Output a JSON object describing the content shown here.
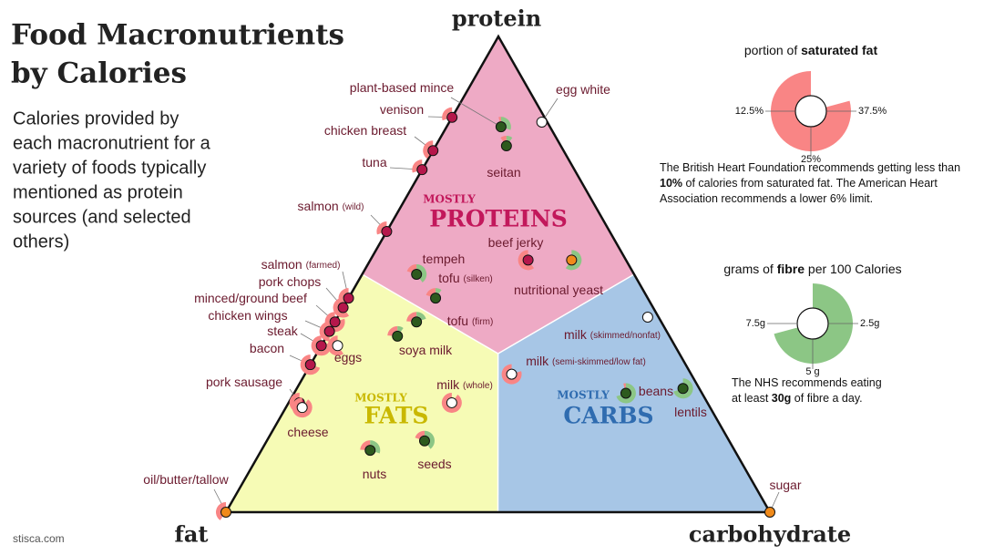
{
  "chart_data": {
    "type": "ternary",
    "title": [
      "Food Macronutrients",
      "by Calories"
    ],
    "subtitle": [
      "Calories provided by",
      "each macronutrient for a",
      "variety of foods typically",
      "mentioned as protein",
      "sources (and selected",
      "others)"
    ],
    "axes": {
      "protein": "protein",
      "fat": "fat",
      "carbohydrate": "carbohydrate"
    },
    "regions": {
      "protein": {
        "small": "MOSTLY",
        "big": "PROTEINS",
        "color": "#eeaac5",
        "text_color": "#c2185b"
      },
      "fat": {
        "small": "MOSTLY",
        "big": "FATS",
        "color": "#f6fbb5",
        "text_color": "#c9b800"
      },
      "carbohydrate": {
        "small": "MOSTLY",
        "big": "CARBS",
        "color": "#a7c6e6",
        "text_color": "#2f6cb0"
      }
    },
    "foods": [
      {
        "name": "egg white",
        "protein": 82,
        "fat": 1,
        "carbohydrate": 17,
        "saturated_fat": 0,
        "fibre": 0,
        "color": "#ffffff"
      },
      {
        "name": "plant-based mince",
        "protein": 81,
        "fat": 9,
        "carbohydrate": 10,
        "saturated_fat": 2,
        "fibre": 3,
        "color": "#2d5a1e"
      },
      {
        "name": "venison",
        "protein": 83,
        "fat": 17,
        "carbohydrate": 0,
        "saturated_fat": 15,
        "fibre": 0,
        "color": "#b5174b"
      },
      {
        "name": "chicken breast",
        "protein": 76,
        "fat": 24,
        "carbohydrate": 0,
        "saturated_fat": 20,
        "fibre": 0,
        "color": "#b5174b"
      },
      {
        "name": "tuna",
        "protein": 72,
        "fat": 28,
        "carbohydrate": 0,
        "saturated_fat": 15,
        "fibre": 0,
        "color": "#b5174b"
      },
      {
        "name": "salmon",
        "qualifier": "(wild)",
        "protein": 59,
        "fat": 41,
        "carbohydrate": 0,
        "saturated_fat": 15,
        "fibre": 0,
        "color": "#b5174b"
      },
      {
        "name": "seitan",
        "protein": 77,
        "fat": 10,
        "carbohydrate": 13,
        "saturated_fat": 5,
        "fibre": 1,
        "color": "#2d5a1e"
      },
      {
        "name": "beef jerky",
        "protein": 53,
        "fat": 18,
        "carbohydrate": 29,
        "saturated_fat": 30,
        "fibre": 0,
        "color": "#b5174b"
      },
      {
        "name": "nutritional yeast",
        "protein": 53,
        "fat": 10,
        "carbohydrate": 37,
        "saturated_fat": 0,
        "fibre": 6,
        "color": "#f08a1a"
      },
      {
        "name": "tempeh",
        "protein": 50,
        "fat": 40,
        "carbohydrate": 10,
        "saturated_fat": 10,
        "fibre": 4,
        "color": "#2d5a1e"
      },
      {
        "name": "tofu",
        "qualifier": "(silken)",
        "protein": 45,
        "fat": 39,
        "carbohydrate": 16,
        "saturated_fat": 10,
        "fibre": 1,
        "color": "#2d5a1e"
      },
      {
        "name": "salmon",
        "qualifier": "(farmed)",
        "protein": 45,
        "fat": 55,
        "carbohydrate": 0,
        "saturated_fat": 20,
        "fibre": 0,
        "color": "#b5174b"
      },
      {
        "name": "pork chops",
        "protein": 43,
        "fat": 57,
        "carbohydrate": 0,
        "saturated_fat": 30,
        "fibre": 0,
        "color": "#b5174b"
      },
      {
        "name": "minced/ground beef",
        "protein": 40,
        "fat": 60,
        "carbohydrate": 0,
        "saturated_fat": 40,
        "fibre": 0,
        "color": "#b5174b"
      },
      {
        "name": "chicken wings",
        "protein": 38,
        "fat": 62,
        "carbohydrate": 0,
        "saturated_fat": 25,
        "fibre": 0,
        "color": "#b5174b"
      },
      {
        "name": "steak",
        "protein": 35,
        "fat": 65,
        "carbohydrate": 0,
        "saturated_fat": 40,
        "fibre": 0,
        "color": "#b5174b"
      },
      {
        "name": "bacon",
        "protein": 31,
        "fat": 69,
        "carbohydrate": 0,
        "saturated_fat": 35,
        "fibre": 0,
        "color": "#b5174b"
      },
      {
        "name": "eggs",
        "protein": 35,
        "fat": 62,
        "carbohydrate": 3,
        "saturated_fat": 30,
        "fibre": 0,
        "color": "#ffffff"
      },
      {
        "name": "tofu",
        "qualifier": "(firm)",
        "protein": 40,
        "fat": 45,
        "carbohydrate": 15,
        "saturated_fat": 12,
        "fibre": 2,
        "color": "#2d5a1e"
      },
      {
        "name": "soya milk",
        "protein": 37,
        "fat": 50,
        "carbohydrate": 13,
        "saturated_fat": 12,
        "fibre": 1,
        "color": "#2d5a1e"
      },
      {
        "name": "pork sausage",
        "protein": 23,
        "fat": 75,
        "carbohydrate": 2,
        "saturated_fat": 35,
        "fibre": 0,
        "color": "#b5174b"
      },
      {
        "name": "cheese",
        "protein": 22,
        "fat": 75,
        "carbohydrate": 3,
        "saturated_fat": 45,
        "fibre": 0,
        "color": "#ffffff"
      },
      {
        "name": "milk",
        "qualifier": "(whole)",
        "protein": 23,
        "fat": 47,
        "carbohydrate": 30,
        "saturated_fat": 45,
        "fibre": 0,
        "color": "#ffffff"
      },
      {
        "name": "nuts",
        "protein": 13,
        "fat": 67,
        "carbohydrate": 20,
        "saturated_fat": 12,
        "fibre": 3,
        "color": "#2d5a1e"
      },
      {
        "name": "seeds",
        "protein": 15,
        "fat": 56,
        "carbohydrate": 29,
        "saturated_fat": 10,
        "fibre": 4,
        "color": "#2d5a1e"
      },
      {
        "name": "milk",
        "qualifier": "(skimmed/nonfat)",
        "protein": 41,
        "fat": 2,
        "carbohydrate": 57,
        "saturated_fat": 0,
        "fibre": 0,
        "color": "#ffffff"
      },
      {
        "name": "milk",
        "qualifier": "(semi-skimmed/low fat)",
        "protein": 29,
        "fat": 33,
        "carbohydrate": 38,
        "saturated_fat": 40,
        "fibre": 0,
        "color": "#ffffff"
      },
      {
        "name": "beans",
        "protein": 25,
        "fat": 14,
        "carbohydrate": 61,
        "saturated_fat": 2,
        "fibre": 7,
        "color": "#2d5a1e"
      },
      {
        "name": "lentils",
        "protein": 26,
        "fat": 3,
        "carbohydrate": 71,
        "saturated_fat": 0,
        "fibre": 7,
        "color": "#2d5a1e"
      },
      {
        "name": "oil/butter/tallow",
        "protein": 0,
        "fat": 100,
        "carbohydrate": 0,
        "saturated_fat": 20,
        "fibre": 0,
        "color": "#f08a1a"
      },
      {
        "name": "sugar",
        "protein": 0,
        "fat": 0,
        "carbohydrate": 100,
        "saturated_fat": 0,
        "fibre": 0,
        "color": "#f08a1a"
      }
    ],
    "saturated_fat_legend": {
      "title": [
        "portion of ",
        "saturated fat"
      ],
      "color": "#f98585",
      "lim": [
        0,
        50
      ],
      "ticks": [
        {
          "value": 12.5,
          "label": "12.5%"
        },
        {
          "value": 25,
          "label": "25%"
        },
        {
          "value": 37.5,
          "label": "37.5%"
        }
      ],
      "note": [
        "The British Heart Foundation recommends getting less than ",
        "10%",
        " of calories from saturated fat. The American Heart Association recommends a lower 6% limit."
      ]
    },
    "fibre_legend": {
      "title": [
        "grams of ",
        "fibre",
        " per 100 Calories"
      ],
      "color": "#8cc685",
      "lim": [
        0,
        10
      ],
      "ticks": [
        {
          "value": 2.5,
          "label": "2.5g"
        },
        {
          "value": 5,
          "label": "5 g"
        },
        {
          "value": 7.5,
          "label": "7.5g"
        }
      ],
      "note": [
        "The NHS recommends eating at least ",
        "30g",
        " of fibre a day."
      ]
    },
    "credit": "stisca.com"
  }
}
